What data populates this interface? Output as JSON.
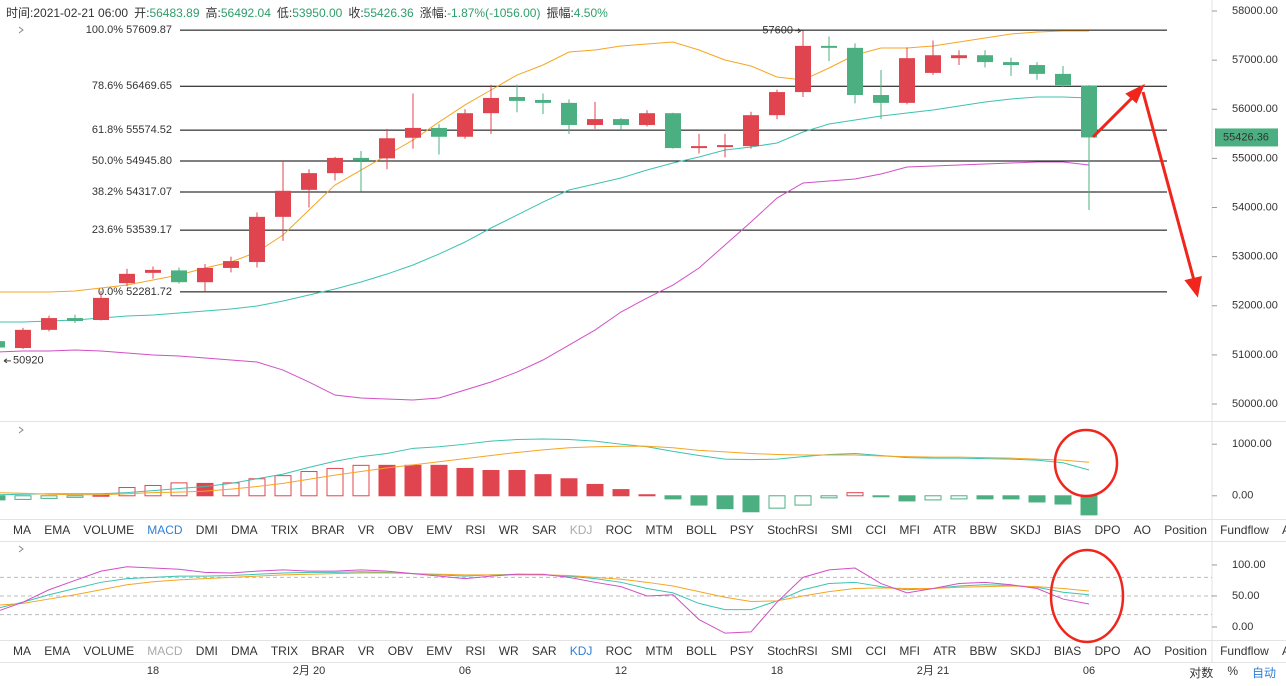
{
  "header": {
    "items": [
      {
        "label": "时间:",
        "value": "2021-02-21 06:00",
        "color": "#333333"
      },
      {
        "label": "开:",
        "value": "56483.89",
        "color": "#2e9e6a"
      },
      {
        "label": "高:",
        "value": "56492.04",
        "color": "#2e9e6a"
      },
      {
        "label": "低:",
        "value": "53950.00",
        "color": "#2e9e6a"
      },
      {
        "label": "收:",
        "value": "55426.36",
        "color": "#2e9e6a"
      },
      {
        "label": "涨幅:",
        "value": "-1.87%(-1056.00)",
        "color": "#2e9e6a"
      },
      {
        "label": "振幅:",
        "value": "4.50%",
        "color": "#2e9e6a"
      }
    ]
  },
  "chart_data": [
    {
      "type": "candlestick",
      "categories": [
        null,
        null,
        null,
        null,
        null,
        null,
        "18",
        null,
        null,
        null,
        null,
        null,
        "2月 20",
        null,
        null,
        null,
        null,
        null,
        "06",
        null,
        null,
        null,
        null,
        null,
        "12",
        null,
        null,
        null,
        null,
        null,
        "18",
        null,
        null,
        null,
        null,
        null,
        "2月 21",
        null,
        null,
        null,
        null,
        null,
        "06"
      ],
      "open": [
        51280,
        51140,
        51510,
        51750,
        51710,
        52460,
        52670,
        52720,
        52480,
        52770,
        52890,
        53810,
        54360,
        54700,
        55010,
        55000,
        55420,
        55620,
        55440,
        55920,
        56250,
        56190,
        56130,
        55680,
        55800,
        55680,
        55920,
        55210,
        55230,
        55250,
        55880,
        56350,
        57290,
        57250,
        56290,
        56130,
        56740,
        57040,
        57100,
        56960,
        56900,
        56720,
        56483.89
      ],
      "high": [
        51300,
        51550,
        51800,
        51820,
        52300,
        52750,
        52800,
        52780,
        52850,
        53000,
        53900,
        54930,
        54780,
        55030,
        55150,
        55600,
        56320,
        55700,
        56000,
        56500,
        56500,
        56320,
        56200,
        56150,
        55820,
        55980,
        55930,
        55500,
        55500,
        55950,
        56400,
        57600,
        57480,
        57340,
        56800,
        57260,
        57400,
        57200,
        57200,
        57050,
        56960,
        56880,
        56492.04
      ],
      "low": [
        50920,
        51120,
        51480,
        51650,
        51700,
        52400,
        52550,
        52450,
        52300,
        52680,
        52780,
        53320,
        54000,
        54550,
        54320,
        54780,
        55200,
        55080,
        55400,
        55500,
        55940,
        55900,
        55500,
        55600,
        55580,
        55650,
        55200,
        55100,
        55020,
        55200,
        55800,
        56250,
        56980,
        56120,
        55800,
        56100,
        56700,
        56900,
        56850,
        56680,
        56600,
        56450,
        53950
      ],
      "close": [
        51150,
        51510,
        51750,
        51690,
        52160,
        52650,
        52730,
        52480,
        52770,
        52910,
        53810,
        54340,
        54700,
        55010,
        54950,
        55410,
        55620,
        55440,
        55920,
        56230,
        56170,
        56130,
        55680,
        55800,
        55680,
        55920,
        55210,
        55250,
        55270,
        55880,
        56350,
        57290,
        57250,
        56290,
        56130,
        57040,
        57100,
        57100,
        56960,
        56900,
        56720,
        56490,
        55426.36
      ],
      "up_color": "#e0454f",
      "down_color": "#4caf82",
      "series": [
        {
          "color": "#f5a623",
          "values": [
            52280,
            52280,
            52280,
            52300,
            52361,
            52422,
            52524,
            52626,
            52769,
            52891,
            53094,
            53440,
            53949,
            54458,
            54763,
            55069,
            55374,
            55740,
            56087,
            56392,
            56697,
            56901,
            57165,
            57206,
            57288,
            57328,
            57369,
            57206,
            57003,
            56880,
            56657,
            56595,
            56840,
            57104,
            57247,
            57247,
            57288,
            57369,
            57450,
            57532,
            57573,
            57593,
            57593
          ]
        },
        {
          "color": "#3cc3b0",
          "values": [
            51669,
            51669,
            51690,
            51710,
            51751,
            51791,
            51812,
            51852,
            51893,
            51934,
            51995,
            52097,
            52219,
            52341,
            52484,
            52646,
            52830,
            53053,
            53298,
            53583,
            53847,
            54112,
            54356,
            54478,
            54601,
            54763,
            54906,
            55028,
            55171,
            55232,
            55313,
            55537,
            55700,
            55781,
            55863,
            55924,
            55985,
            56066,
            56148,
            56209,
            56249,
            56249,
            56229
          ]
        },
        {
          "color": "#d24fc6",
          "values": [
            51059,
            51079,
            51079,
            51099,
            51079,
            51038,
            50998,
            50977,
            50936,
            50896,
            50855,
            50692,
            50448,
            50183,
            50122,
            50102,
            50082,
            50122,
            50285,
            50448,
            50651,
            50896,
            51201,
            51506,
            51873,
            52158,
            52422,
            52769,
            53237,
            53705,
            54193,
            54499,
            54539,
            54580,
            54682,
            54824,
            54845,
            54865,
            54886,
            54906,
            54926,
            54926,
            54865
          ]
        }
      ],
      "ylim": [
        49675,
        58224
      ],
      "yticks": [
        {
          "value": 50000,
          "label": "50000.00"
        },
        {
          "value": 51000,
          "label": "51000.00"
        },
        {
          "value": 52000,
          "label": "52000.00"
        },
        {
          "value": 53000,
          "label": "53000.00"
        },
        {
          "value": 54000,
          "label": "54000.00"
        },
        {
          "value": 55000,
          "label": "55000.00"
        },
        {
          "value": 56000,
          "label": "56000.00"
        },
        {
          "value": 57000,
          "label": "57000.00"
        },
        {
          "value": 58000,
          "label": "58000.00"
        }
      ],
      "fib_levels": [
        {
          "value": 57609.87,
          "label": "100.0% 57609.87"
        },
        {
          "value": 56469.65,
          "label": "78.6% 56469.65"
        },
        {
          "value": 55574.52,
          "label": "61.8% 55574.52"
        },
        {
          "value": 54945.8,
          "label": "50.0% 54945.80"
        },
        {
          "value": 54317.07,
          "label": "38.2% 54317.07"
        },
        {
          "value": 53539.17,
          "label": "23.6% 53539.17"
        },
        {
          "value": 52281.72,
          "label": "0.0% 52281.72"
        }
      ],
      "high_marker": 57600,
      "low_marker": 50920,
      "last_price": 55426.36
    },
    {
      "type": "macd",
      "histogram": [
        -80,
        -70,
        -50,
        -30,
        10,
        160,
        200,
        250,
        240,
        250,
        330,
        390,
        470,
        530,
        590,
        590,
        590,
        590,
        530,
        490,
        490,
        410,
        330,
        220,
        120,
        20,
        -60,
        -180,
        -250,
        -310,
        -240,
        -180,
        -40,
        60,
        -20,
        -100,
        -80,
        -60,
        -60,
        -60,
        -120,
        -160,
        -370
      ],
      "series": [
        {
          "color": "#3cc3b0",
          "values": [
            20,
            30,
            40,
            40,
            40,
            60,
            100,
            140,
            180,
            240,
            330,
            420,
            550,
            670,
            760,
            820,
            920,
            950,
            1000,
            1060,
            1090,
            1100,
            1090,
            1060,
            1000,
            950,
            860,
            780,
            710,
            700,
            710,
            760,
            800,
            820,
            780,
            740,
            730,
            730,
            720,
            710,
            690,
            640,
            500
          ]
        },
        {
          "color": "#f5a623",
          "values": [
            60,
            50,
            30,
            20,
            20,
            40,
            60,
            70,
            90,
            130,
            180,
            240,
            320,
            400,
            470,
            540,
            600,
            660,
            720,
            780,
            840,
            890,
            930,
            950,
            960,
            960,
            930,
            880,
            850,
            820,
            800,
            790,
            790,
            790,
            770,
            760,
            750,
            750,
            740,
            730,
            710,
            690,
            650
          ]
        }
      ],
      "ylim": [
        -450,
        1430
      ],
      "yticks": [
        {
          "value": 0,
          "label": "0.00"
        },
        {
          "value": 1000,
          "label": "1000.00"
        }
      ]
    },
    {
      "type": "line",
      "series": [
        {
          "color": "#3cc3b0",
          "values": [
            30,
            40,
            52,
            62,
            72,
            78,
            80,
            82,
            82,
            83,
            85,
            87,
            88,
            88,
            89,
            88,
            86,
            84,
            82,
            84,
            85,
            84,
            82,
            78,
            72,
            62,
            55,
            38,
            28,
            28,
            42,
            60,
            70,
            72,
            65,
            60,
            62,
            66,
            68,
            67,
            64,
            56,
            52
          ]
        },
        {
          "color": "#f5a623",
          "values": [
            35,
            38,
            45,
            52,
            60,
            68,
            73,
            76,
            78,
            80,
            82,
            84,
            85,
            86,
            87,
            87,
            86,
            85,
            84,
            84,
            84,
            84,
            83,
            80,
            77,
            72,
            66,
            57,
            48,
            41,
            42,
            50,
            57,
            62,
            63,
            62,
            62,
            64,
            65,
            66,
            65,
            62,
            58
          ]
        },
        {
          "color": "#d24fc6",
          "values": [
            25,
            40,
            60,
            75,
            90,
            97,
            95,
            93,
            88,
            87,
            90,
            92,
            90,
            90,
            92,
            90,
            86,
            82,
            78,
            82,
            85,
            85,
            80,
            72,
            65,
            50,
            52,
            12,
            -10,
            -8,
            40,
            80,
            92,
            95,
            70,
            55,
            62,
            70,
            72,
            68,
            62,
            45,
            37
          ]
        }
      ],
      "ylim": [
        -21,
        137
      ],
      "yticks": [
        {
          "value": 0,
          "label": "0.00"
        },
        {
          "value": 50,
          "label": "50.00"
        },
        {
          "value": 100,
          "label": "100.00"
        }
      ],
      "hlines": [
        80,
        50,
        20
      ]
    }
  ],
  "indicator_bars": [
    {
      "tabs": [
        "MA",
        "EMA",
        "VOLUME",
        "MACD",
        "DMI",
        "DMA",
        "TRIX",
        "BRAR",
        "VR",
        "OBV",
        "EMV",
        "RSI",
        "WR",
        "SAR",
        "KDJ",
        "ROC",
        "MTM",
        "BOLL",
        "PSY",
        "StochRSI",
        "SMI",
        "CCI",
        "MFI",
        "ATR",
        "BBW",
        "SKDJ",
        "BIAS",
        "DPO",
        "AO",
        "Position",
        "Fundflow",
        "AI-NetVOL"
      ],
      "active": 3,
      "muted": 14
    },
    {
      "tabs": [
        "MA",
        "EMA",
        "VOLUME",
        "MACD",
        "DMI",
        "DMA",
        "TRIX",
        "BRAR",
        "VR",
        "OBV",
        "EMV",
        "RSI",
        "WR",
        "SAR",
        "KDJ",
        "ROC",
        "MTM",
        "BOLL",
        "PSY",
        "StochRSI",
        "SMI",
        "CCI",
        "MFI",
        "ATR",
        "BBW",
        "SKDJ",
        "BIAS",
        "DPO",
        "AO",
        "Position",
        "Fundflow",
        "AI-NetVOL"
      ],
      "active": 14,
      "muted": 3
    }
  ],
  "toolbar": [
    "对数",
    "%",
    "自动"
  ]
}
